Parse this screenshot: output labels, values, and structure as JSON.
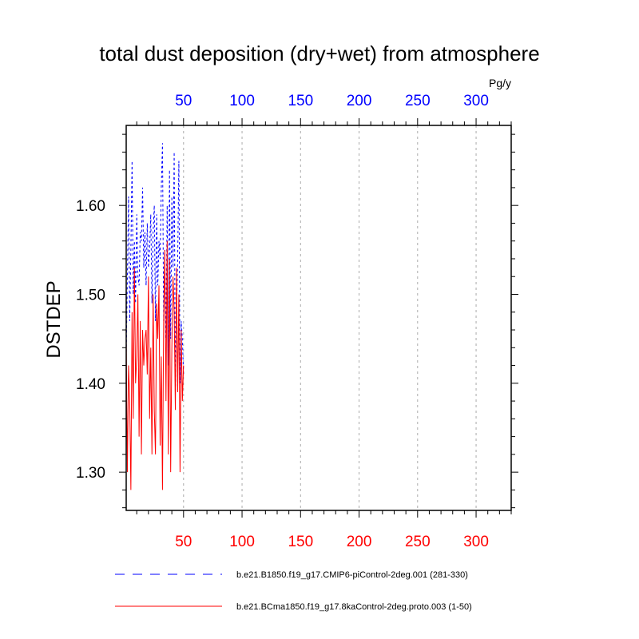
{
  "chart_data": {
    "type": "line",
    "title": "total dust deposition (dry+wet) from atmosphere",
    "ylabel": "DSTDEP",
    "units": "Pg/y",
    "xlim": [
      1,
      330
    ],
    "ylim": [
      1.257,
      1.69
    ],
    "bottom_axis": {
      "color": "#ff0000",
      "ticks": [
        50,
        100,
        150,
        200,
        250,
        300
      ]
    },
    "top_axis": {
      "color": "#0000ff",
      "ticks": [
        50,
        100,
        150,
        200,
        250,
        300
      ]
    },
    "yticks": [
      1.3,
      1.4,
      1.5,
      1.6
    ],
    "ytick_labels": [
      "1.30",
      "1.40",
      "1.50",
      "1.60"
    ],
    "grid_x": [
      50,
      100,
      150,
      200,
      250,
      300
    ],
    "series": [
      {
        "name": "b.e21.B1850.f19_g17.CMIP6-piControl-2deg.001 (281-330)",
        "color": "#0000ff",
        "style": "dashed",
        "x": [
          1,
          2,
          3,
          4,
          5,
          6,
          7,
          8,
          9,
          10,
          11,
          12,
          13,
          14,
          15,
          16,
          17,
          18,
          19,
          20,
          21,
          22,
          23,
          24,
          25,
          26,
          27,
          28,
          29,
          30,
          31,
          32,
          33,
          34,
          35,
          36,
          37,
          38,
          39,
          40,
          41,
          42,
          43,
          44,
          45,
          46,
          47,
          48,
          49,
          50
        ],
        "values": [
          1.43,
          1.52,
          1.61,
          1.47,
          1.55,
          1.65,
          1.5,
          1.56,
          1.49,
          1.59,
          1.52,
          1.51,
          1.57,
          1.56,
          1.62,
          1.53,
          1.57,
          1.51,
          1.58,
          1.53,
          1.55,
          1.59,
          1.49,
          1.57,
          1.6,
          1.47,
          1.59,
          1.51,
          1.56,
          1.54,
          1.62,
          1.67,
          1.47,
          1.55,
          1.45,
          1.6,
          1.42,
          1.64,
          1.45,
          1.61,
          1.53,
          1.66,
          1.39,
          1.48,
          1.54,
          1.65,
          1.4,
          1.47,
          1.45,
          1.41
        ]
      },
      {
        "name": "b.e21.BCma1850.f19_g17.8kaControl-2deg.proto.003 (1-50)",
        "color": "#ff0000",
        "style": "solid",
        "x": [
          1,
          2,
          3,
          4,
          5,
          6,
          7,
          8,
          9,
          10,
          11,
          12,
          13,
          14,
          15,
          16,
          17,
          18,
          19,
          20,
          21,
          22,
          23,
          24,
          25,
          26,
          27,
          28,
          29,
          30,
          31,
          32,
          33,
          34,
          35,
          36,
          37,
          38,
          39,
          40,
          41,
          42,
          43,
          44,
          45,
          46,
          47,
          48,
          49,
          50
        ],
        "values": [
          1.45,
          1.3,
          1.42,
          1.38,
          1.28,
          1.48,
          1.36,
          1.53,
          1.4,
          1.43,
          1.5,
          1.34,
          1.47,
          1.32,
          1.46,
          1.42,
          1.45,
          1.46,
          1.41,
          1.52,
          1.36,
          1.44,
          1.32,
          1.5,
          1.37,
          1.32,
          1.49,
          1.45,
          1.51,
          1.33,
          1.43,
          1.28,
          1.47,
          1.55,
          1.38,
          1.56,
          1.32,
          1.54,
          1.3,
          1.44,
          1.52,
          1.48,
          1.37,
          1.53,
          1.39,
          1.5,
          1.3,
          1.46,
          1.38,
          1.42
        ]
      }
    ],
    "legend": {
      "position": "bottom"
    }
  }
}
